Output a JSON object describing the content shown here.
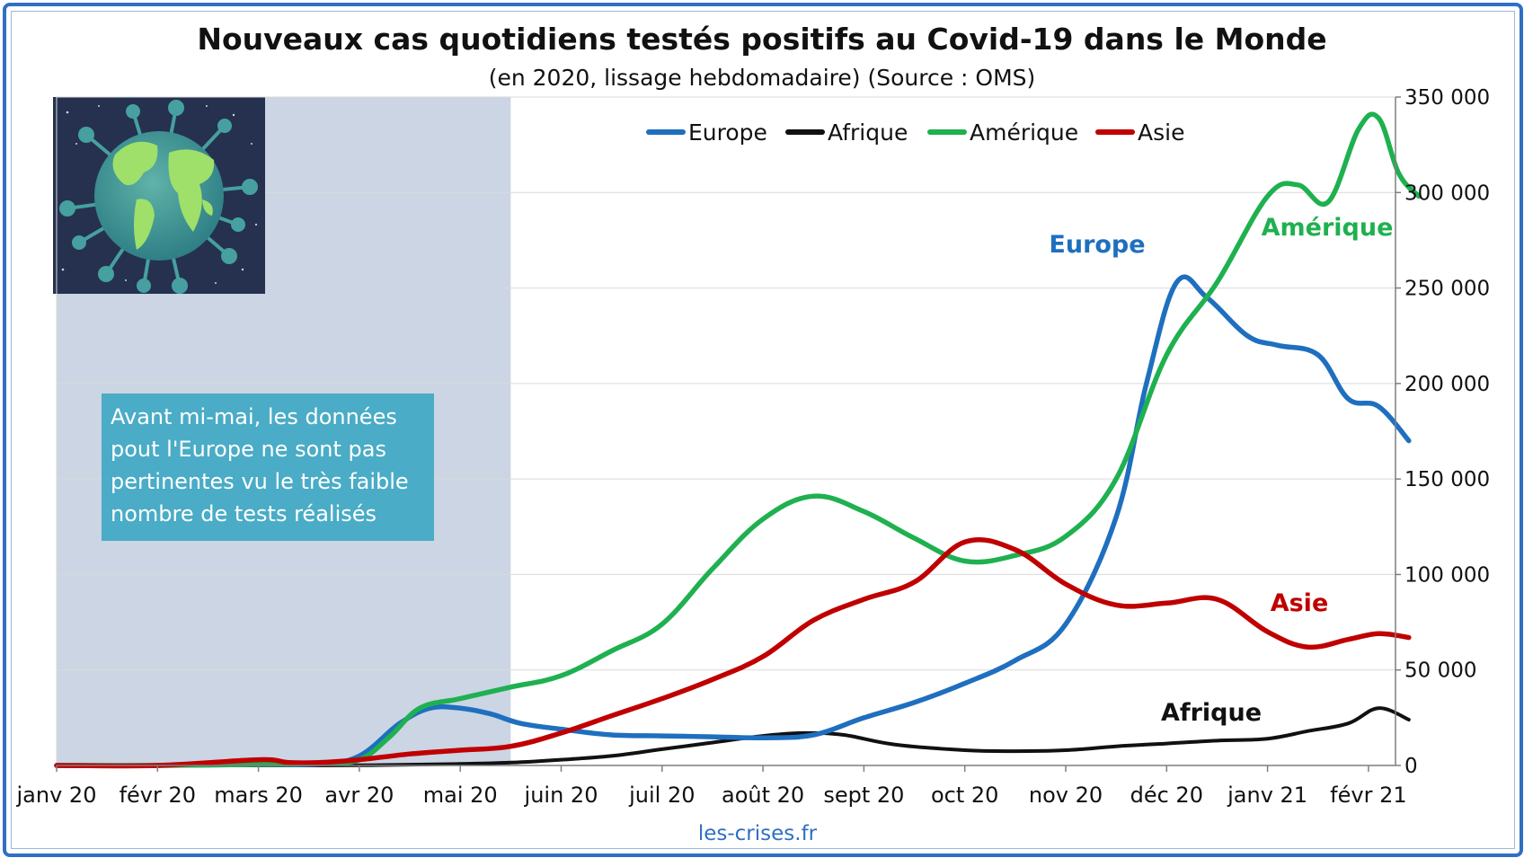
{
  "chart_data": {
    "type": "line",
    "title": "Nouveaux cas quotidiens testés positifs au Covid-19 dans le Monde",
    "subtitle": "(en 2020, lissage hebdomadaire) (Source : OMS)",
    "source_credit": "les-crises.fr",
    "ylim": [
      0,
      350000
    ],
    "y_ticks": [
      "0",
      "50 000",
      "100 000",
      "150 000",
      "200 000",
      "250 000",
      "300 000",
      "350 000"
    ],
    "y_axis_side": "right",
    "grid": true,
    "legend_position": "top",
    "x_tick_labels": [
      "janv 20",
      "févr 20",
      "mars 20",
      "avr 20",
      "mai 20",
      "juin 20",
      "juil 20",
      "août 20",
      "sept 20",
      "oct 20",
      "nov 20",
      "déc 20",
      "janv 21",
      "févr 21"
    ],
    "x_unit": "months since janv 20",
    "shaded_region": {
      "from": 0,
      "to": 4.5,
      "color": "#cbd5e3"
    },
    "annotation": "Avant mi-mai, les données pout l'Europe ne sont pas pertinentes vu le très faible nombre de tests réalisés",
    "series": [
      {
        "name": "Europe",
        "color": "#1f6fbf",
        "label": "Europe",
        "x": [
          0,
          1,
          2,
          2.6,
          3,
          3.4,
          3.7,
          4,
          4.3,
          4.6,
          5,
          5.5,
          6,
          6.5,
          7,
          7.5,
          8,
          8.5,
          9,
          9.5,
          10,
          10.5,
          10.8,
          11.1,
          11.4,
          11.8,
          12.1,
          12.5,
          12.8,
          13.1,
          13.4
        ],
        "y": [
          0,
          0,
          500,
          800,
          5000,
          22000,
          30000,
          30000,
          27000,
          22000,
          19000,
          16000,
          15500,
          15000,
          14500,
          16000,
          25000,
          33000,
          43000,
          55000,
          74000,
          130000,
          200000,
          253000,
          245000,
          225000,
          220000,
          215000,
          192000,
          188000,
          170000
        ]
      },
      {
        "name": "Afrique",
        "color": "#111111",
        "label": "Afrique",
        "x": [
          0,
          1,
          2,
          3,
          4,
          4.5,
          5,
          5.5,
          6,
          6.5,
          7,
          7.4,
          7.8,
          8.3,
          9,
          9.5,
          10,
          10.5,
          11,
          11.5,
          12,
          12.4,
          12.8,
          13.1,
          13.4
        ],
        "y": [
          0,
          0,
          0,
          100,
          800,
          1500,
          3000,
          5000,
          8500,
          12000,
          15500,
          17000,
          16000,
          11000,
          8000,
          7500,
          8000,
          10000,
          11500,
          13000,
          14000,
          18000,
          22000,
          30000,
          24000
        ]
      },
      {
        "name": "Amérique",
        "color": "#1fb050",
        "label": "Amérique",
        "x": [
          0,
          1,
          2,
          2.6,
          3,
          3.3,
          3.6,
          4,
          4.5,
          5,
          5.5,
          6,
          6.5,
          7,
          7.5,
          8,
          8.5,
          9,
          9.5,
          10,
          10.5,
          11,
          11.5,
          12,
          12.3,
          12.6,
          12.9,
          13.1,
          13.3,
          13.5
        ],
        "y": [
          0,
          0,
          500,
          1000,
          3000,
          15000,
          30000,
          35000,
          41000,
          47000,
          60000,
          74000,
          103000,
          129000,
          141000,
          133000,
          119000,
          107000,
          110000,
          120000,
          150000,
          215000,
          253000,
          298000,
          304000,
          295000,
          333000,
          339000,
          310000,
          298000
        ]
      },
      {
        "name": "Asie",
        "color": "#c00000",
        "label": "Asie",
        "x": [
          0,
          1,
          2,
          2.3,
          2.6,
          3,
          3.5,
          4,
          4.5,
          5,
          5.5,
          6,
          6.5,
          7,
          7.5,
          8,
          8.5,
          9,
          9.5,
          10,
          10.5,
          11,
          11.5,
          12,
          12.4,
          12.8,
          13.1,
          13.4
        ],
        "y": [
          0,
          0,
          3000,
          1500,
          1500,
          3000,
          6000,
          8000,
          10000,
          17000,
          26000,
          35000,
          45000,
          57000,
          76000,
          87000,
          96000,
          117000,
          113000,
          95000,
          84000,
          85000,
          87000,
          70000,
          62000,
          66000,
          69000,
          67000
        ]
      }
    ]
  }
}
